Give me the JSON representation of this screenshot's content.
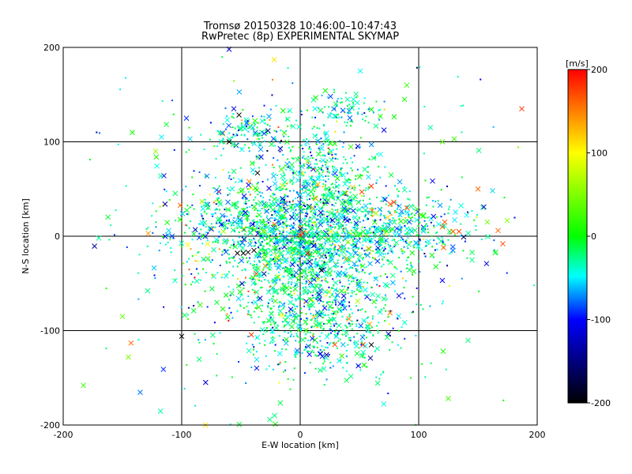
{
  "chart_data": {
    "type": "scatter",
    "title": "Tromsø 20150328 10:46:00–10:47:43",
    "subtitle": "RwPretec (8p) EXPERIMENTAL SKYMAP",
    "xlabel": "E-W location [km]",
    "ylabel": "N-S location [km]",
    "xlim": [
      -200,
      200
    ],
    "ylim": [
      -200,
      200
    ],
    "grid": true,
    "x_ticks": [
      "-200",
      "-100",
      "0",
      "100",
      "200"
    ],
    "y_ticks": [
      "-200",
      "-100",
      "0",
      "100",
      "200"
    ],
    "colorbar": {
      "label": "[m/s]",
      "range": [
        -200,
        200
      ],
      "ticks": [
        "200",
        "100",
        "0",
        "-100",
        "-200"
      ],
      "colors": [
        "#ff0000",
        "#ffff00",
        "#00ff00",
        "#00ffff",
        "#0000ff",
        "#000000"
      ]
    },
    "markers": [
      "x",
      "dot"
    ],
    "highlighted_points": [
      {
        "x": 187,
        "y": 135,
        "v": 180
      },
      {
        "x": 171,
        "y": -8,
        "v": 170
      },
      {
        "x": 167,
        "y": 6,
        "v": 160
      },
      {
        "x": 150,
        "y": 50,
        "v": 160
      },
      {
        "x": 134,
        "y": 5,
        "v": 170
      },
      {
        "x": 129,
        "y": 5,
        "v": 165
      },
      {
        "x": 122,
        "y": 15,
        "v": 170
      },
      {
        "x": 120,
        "y": 10,
        "v": 165
      },
      {
        "x": 121,
        "y": -12,
        "v": 160
      },
      {
        "x": 90,
        "y": 30,
        "v": 165
      },
      {
        "x": 79,
        "y": 36,
        "v": 175
      },
      {
        "x": 76,
        "y": 34,
        "v": 165
      },
      {
        "x": 60,
        "y": 53,
        "v": 180
      },
      {
        "x": 52,
        "y": 47,
        "v": 170
      },
      {
        "x": 53,
        "y": -115,
        "v": 180
      },
      {
        "x": 60,
        "y": -115,
        "v": -200
      },
      {
        "x": -60,
        "y": 100,
        "v": -200
      },
      {
        "x": -36,
        "y": 67,
        "v": -200
      },
      {
        "x": -53,
        "y": -18,
        "v": -200
      },
      {
        "x": -48,
        "y": -18,
        "v": -200
      },
      {
        "x": -44,
        "y": -17,
        "v": -200
      },
      {
        "x": -39,
        "y": -15,
        "v": -200
      },
      {
        "x": 18,
        "y": -36,
        "v": -200
      },
      {
        "x": -100,
        "y": -106,
        "v": -200
      },
      {
        "x": 0,
        "y": 1,
        "v": 190
      },
      {
        "x": 2,
        "y": 3,
        "v": 185
      },
      {
        "x": 13,
        "y": 40,
        "v": 140
      },
      {
        "x": 15,
        "y": 55,
        "v": 130
      },
      {
        "x": 10,
        "y": 30,
        "v": 120
      },
      {
        "x": 30,
        "y": 140,
        "v": -10
      },
      {
        "x": 40,
        "y": 145,
        "v": -30
      },
      {
        "x": -45,
        "y": 120,
        "v": -80
      },
      {
        "x": -40,
        "y": 115,
        "v": -60
      },
      {
        "x": -32,
        "y": 122,
        "v": -40
      },
      {
        "x": -56,
        "y": 135,
        "v": -110
      },
      {
        "x": -96,
        "y": 125,
        "v": -90
      },
      {
        "x": -60,
        "y": 198,
        "v": -120
      },
      {
        "x": -22,
        "y": 187,
        "v": 110
      },
      {
        "x": 88,
        "y": 145,
        "v": 10
      },
      {
        "x": 90,
        "y": 160,
        "v": 20
      },
      {
        "x": 130,
        "y": 103,
        "v": 20
      },
      {
        "x": 120,
        "y": 100,
        "v": 30
      },
      {
        "x": -117,
        "y": 105,
        "v": -50
      },
      {
        "x": -122,
        "y": 90,
        "v": 60
      },
      {
        "x": -114,
        "y": 34,
        "v": -140
      },
      {
        "x": -170,
        "y": -2,
        "v": -30
      },
      {
        "x": -150,
        "y": -85,
        "v": 40
      },
      {
        "x": -145,
        "y": -128,
        "v": 50
      },
      {
        "x": -183,
        "y": -158,
        "v": 20
      },
      {
        "x": 125,
        "y": -172,
        "v": 30
      },
      {
        "x": 158,
        "y": 15,
        "v": 40
      },
      {
        "x": 165,
        "y": -17,
        "v": 10
      },
      {
        "x": 155,
        "y": 31,
        "v": -110
      },
      {
        "x": -80,
        "y": -200,
        "v": 110
      }
    ]
  }
}
